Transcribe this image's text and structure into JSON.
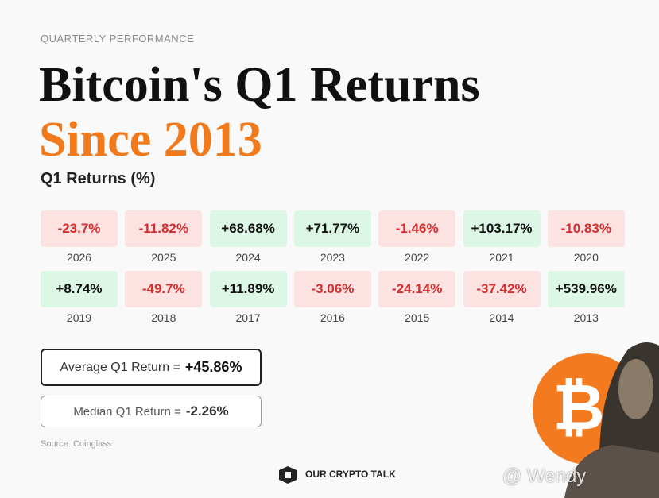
{
  "header": {
    "kicker": "QUARTERLY PERFORMANCE",
    "title_line1": "Bitcoin's Q1 Returns",
    "title_line2": "Since 2013",
    "subtitle": "Q1 Returns (%)"
  },
  "tiles": [
    {
      "value": "-23.7%",
      "year": "2026"
    },
    {
      "value": "-11.82%",
      "year": "2025"
    },
    {
      "value": "+68.68%",
      "year": "2024"
    },
    {
      "value": "+71.77%",
      "year": "2023"
    },
    {
      "value": "-1.46%",
      "year": "2022"
    },
    {
      "value": "+103.17%",
      "year": "2021"
    },
    {
      "value": "-10.83%",
      "year": "2020"
    },
    {
      "value": "+8.74%",
      "year": "2019"
    },
    {
      "value": "-49.7%",
      "year": "2018"
    },
    {
      "value": "+11.89%",
      "year": "2017"
    },
    {
      "value": "-3.06%",
      "year": "2016"
    },
    {
      "value": "-24.14%",
      "year": "2015"
    },
    {
      "value": "-37.42%",
      "year": "2014"
    },
    {
      "value": "+539.96%",
      "year": "2013"
    }
  ],
  "stats": [
    {
      "label": "Average Q1 Return =",
      "value": "+45.86%"
    },
    {
      "label": "Median Q1 Return =",
      "value": "-2.26%"
    }
  ],
  "source": "Source: Coinglass",
  "brand": "OUR CRYPTO TALK",
  "watermark": "@ Wendy"
}
